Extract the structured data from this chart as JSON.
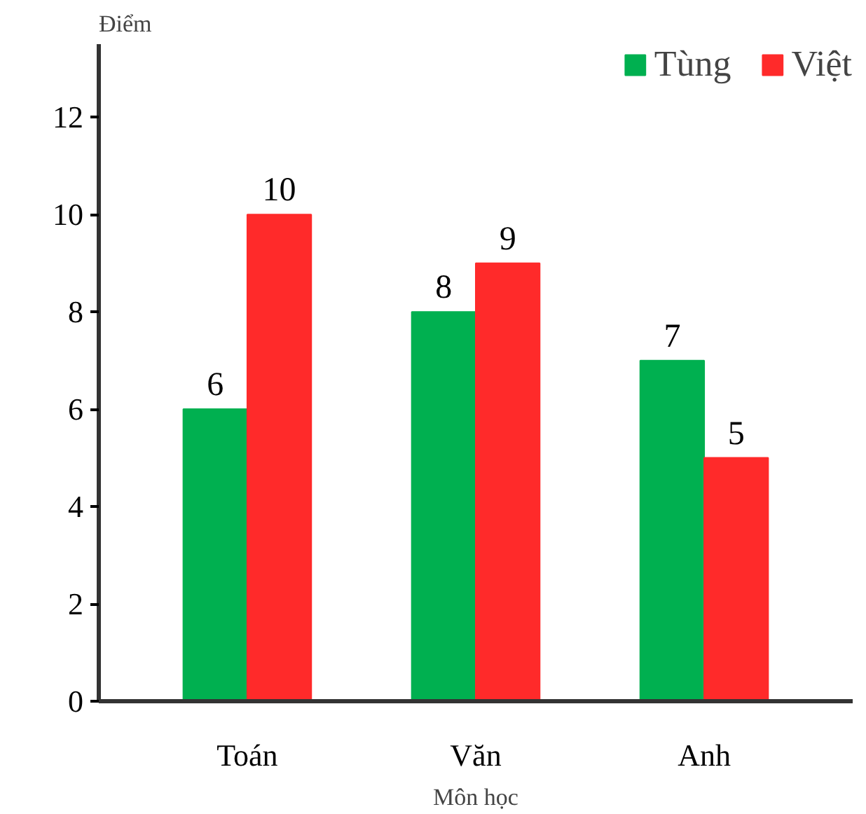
{
  "chart_data": {
    "type": "bar",
    "xlabel": "Môn học",
    "ylabel": "Điểm",
    "categories": [
      "Toán",
      "Văn",
      "Anh"
    ],
    "series": [
      {
        "name": "Tùng",
        "color": "#00b050",
        "values": [
          6,
          8,
          7
        ]
      },
      {
        "name": "Việt",
        "color": "#ff2a2a",
        "values": [
          10,
          9,
          5
        ]
      }
    ],
    "ylim": [
      0,
      13.5
    ],
    "yticks": [
      0,
      2,
      4,
      6,
      8,
      10,
      12
    ],
    "grid": false,
    "legend": "top right",
    "data_labels": true
  }
}
